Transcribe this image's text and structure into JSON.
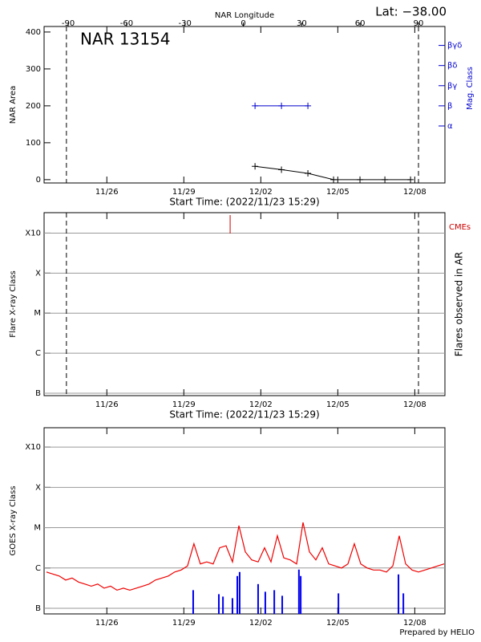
{
  "chart_data": [
    {
      "type": "line",
      "annotation": "NAR 13154",
      "lat_label": "Lat: −38.00",
      "xlabel": "Start Time: (2022/11/23 15:29)",
      "x2label": "NAR Longitude",
      "ylabel": "NAR Area",
      "y2label": "Mag. Class",
      "xlim": [
        -0.09,
        15.53
      ],
      "xticks": [
        {
          "value": 2.355,
          "label": "11/26"
        },
        {
          "value": 5.355,
          "label": "11/29"
        },
        {
          "value": 8.355,
          "label": "12/02"
        },
        {
          "value": 11.355,
          "label": "12/05"
        },
        {
          "value": 14.355,
          "label": "12/08"
        }
      ],
      "x2lim": [
        -102.4,
        103.6
      ],
      "x2ticks": [
        -90,
        -60,
        -30,
        0,
        30,
        60,
        90
      ],
      "ylim": [
        -9,
        415
      ],
      "yticks": [
        0,
        100,
        200,
        300,
        400
      ],
      "y2lim": [
        -1.83,
        5.94
      ],
      "y2ticks": [
        {
          "value": 1,
          "label": "α"
        },
        {
          "value": 2,
          "label": "β"
        },
        {
          "value": 3,
          "label": "βγ"
        },
        {
          "value": 4,
          "label": "βδ"
        },
        {
          "value": 5,
          "label": "βγδ"
        }
      ],
      "limb_x": [
        0.78,
        14.5
      ],
      "series": [
        {
          "color": "#000000",
          "x": [
            8.13,
            9.16,
            10.19,
            11.19,
            12.22,
            13.19,
            14.19
          ],
          "values": [
            36,
            27,
            17,
            0,
            0,
            0,
            0
          ]
        },
        {
          "color": "#0000cc",
          "axis": "y2",
          "x": [
            8.13,
            9.16,
            10.19
          ],
          "values": [
            2,
            2,
            2
          ]
        }
      ]
    },
    {
      "type": "event",
      "xlabel": "Start Time: (2022/11/23 15:29)",
      "ylabel": "Flare X-ray Class",
      "y2label": "Flares observed in AR",
      "xlim": [
        -0.09,
        15.53
      ],
      "xticks": [
        {
          "value": 2.355,
          "label": "11/26"
        },
        {
          "value": 5.355,
          "label": "11/29"
        },
        {
          "value": 8.355,
          "label": "12/02"
        },
        {
          "value": 11.355,
          "label": "12/05"
        },
        {
          "value": 14.355,
          "label": "12/08"
        }
      ],
      "ylim": [
        -7.06,
        -2.49
      ],
      "yticks": [
        {
          "value": -7,
          "label": "B"
        },
        {
          "value": -6,
          "label": "C"
        },
        {
          "value": -5,
          "label": "M"
        },
        {
          "value": -4,
          "label": "X"
        },
        {
          "value": -3,
          "label": "X10"
        }
      ],
      "grid": true,
      "limb_x": [
        0.78,
        14.5
      ],
      "series": [
        {
          "name": "CMEs",
          "color": "#cc0000",
          "x": [
            7.16
          ]
        }
      ]
    },
    {
      "type": "line",
      "ylabel": "GOES X-ray Class",
      "xlim": [
        -0.09,
        15.53
      ],
      "xticks": [
        {
          "value": 2.355,
          "label": "11/26"
        },
        {
          "value": 5.355,
          "label": "11/29"
        },
        {
          "value": 8.355,
          "label": "12/02"
        },
        {
          "value": 11.355,
          "label": "12/05"
        },
        {
          "value": 14.355,
          "label": "12/08"
        }
      ],
      "ylim": [
        -7.14,
        -2.52
      ],
      "yticks": [
        {
          "value": -7,
          "label": "B"
        },
        {
          "value": -6,
          "label": "C"
        },
        {
          "value": -5,
          "label": "M"
        },
        {
          "value": -4,
          "label": "X"
        },
        {
          "value": -3,
          "label": "X10"
        }
      ],
      "grid": true,
      "series": [
        {
          "color": "#ee0000",
          "x": [
            0,
            0.25,
            0.5,
            0.75,
            1,
            1.25,
            1.5,
            1.75,
            2,
            2.25,
            2.5,
            2.75,
            3,
            3.25,
            3.5,
            3.75,
            4,
            4.25,
            4.5,
            4.75,
            5,
            5.25,
            5.5,
            5.75,
            6,
            6.25,
            6.5,
            6.75,
            7,
            7.25,
            7.5,
            7.75,
            8,
            8.25,
            8.5,
            8.75,
            9,
            9.25,
            9.5,
            9.75,
            10,
            10.25,
            10.5,
            10.75,
            11,
            11.25,
            11.5,
            11.75,
            12,
            12.25,
            12.5,
            12.75,
            13,
            13.25,
            13.5,
            13.75,
            14,
            14.25,
            14.5,
            14.75,
            15,
            15.25,
            15.5
          ],
          "values": [
            -6.1,
            -6.15,
            -6.2,
            -6.3,
            -6.25,
            -6.35,
            -6.4,
            -6.45,
            -6.4,
            -6.5,
            -6.45,
            -6.55,
            -6.5,
            -6.55,
            -6.5,
            -6.45,
            -6.4,
            -6.3,
            -6.25,
            -6.2,
            -6.1,
            -6.05,
            -5.95,
            -5.4,
            -5.9,
            -5.85,
            -5.9,
            -5.5,
            -5.45,
            -5.85,
            -4.95,
            -5.6,
            -5.8,
            -5.85,
            -5.5,
            -5.85,
            -5.2,
            -5.75,
            -5.8,
            -5.9,
            -4.87,
            -5.6,
            -5.8,
            -5.5,
            -5.9,
            -5.95,
            -6,
            -5.9,
            -5.4,
            -5.9,
            -6,
            -6.05,
            -6.05,
            -6.1,
            -5.95,
            -5.2,
            -5.9,
            -6.05,
            -6.1,
            -6.05,
            -6,
            -5.95,
            -5.9
          ]
        },
        {
          "type": "bar",
          "color": "#0000ee",
          "x": [
            5.72,
            6.72,
            6.88,
            7.25,
            7.44,
            7.53,
            8.25,
            8.53,
            8.88,
            9.19,
            9.84,
            9.91,
            11.38,
            13.72,
            13.91
          ],
          "values": [
            -6.55,
            -6.65,
            -6.71,
            -6.75,
            -6.2,
            -6.1,
            -6.4,
            -6.59,
            -6.55,
            -6.69,
            -6.04,
            -6.2,
            -6.63,
            -6.16,
            -6.63
          ]
        }
      ]
    }
  ],
  "footer": "Prepared by HELIO"
}
